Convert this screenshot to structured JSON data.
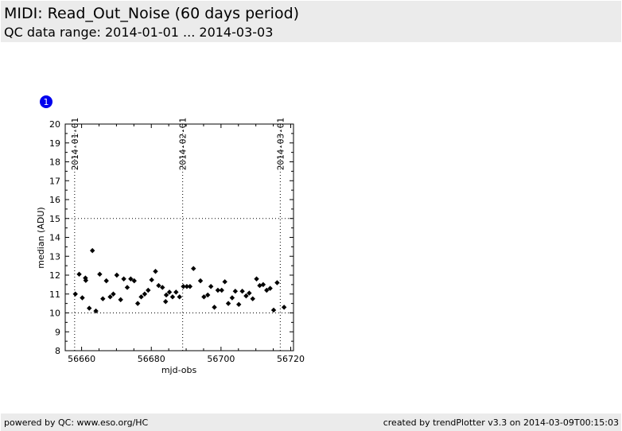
{
  "header": {
    "title": "MIDI: Read_Out_Noise (60 days period)",
    "subtitle": "QC data range: 2014-01-01 ... 2014-03-03"
  },
  "footer": {
    "left": "powered by QC: www.eso.org/HC",
    "right": "created by trendPlotter v3.3 on 2014-03-09T00:15:03"
  },
  "badge": {
    "label": "1",
    "color": "#0000ee"
  },
  "chart_data": {
    "type": "scatter",
    "xlabel": "mjd-obs",
    "ylabel": "median (ADU)",
    "xlim": [
      56655.3,
      56720.8
    ],
    "ylim": [
      8,
      20
    ],
    "xticks": [
      56660,
      56680,
      56700,
      56720
    ],
    "yticks": [
      8,
      9,
      10,
      11,
      12,
      13,
      14,
      15,
      16,
      17,
      18,
      19,
      20
    ],
    "hlines": [
      10,
      15
    ],
    "vlines": [
      {
        "x": 56658.0,
        "label": "2014-01-01"
      },
      {
        "x": 56689.0,
        "label": "2014-02-01"
      },
      {
        "x": 56717.0,
        "label": "2014-03-01"
      }
    ],
    "point_color": "#000000",
    "points": [
      [
        56658.2,
        11.0
      ],
      [
        56659.3,
        12.05
      ],
      [
        56660.2,
        10.8
      ],
      [
        56661.1,
        11.85
      ],
      [
        56661.2,
        11.72
      ],
      [
        56662.2,
        10.25
      ],
      [
        56663.1,
        13.3
      ],
      [
        56664.1,
        10.1
      ],
      [
        56665.2,
        12.05
      ],
      [
        56666.1,
        10.75
      ],
      [
        56667.1,
        11.7
      ],
      [
        56668.2,
        10.85
      ],
      [
        56669.1,
        11.0
      ],
      [
        56670.1,
        12.0
      ],
      [
        56671.2,
        10.7
      ],
      [
        56672.1,
        11.8
      ],
      [
        56673.1,
        11.35
      ],
      [
        56674.1,
        11.8
      ],
      [
        56675.1,
        11.7
      ],
      [
        56676.1,
        10.5
      ],
      [
        56677.1,
        10.85
      ],
      [
        56678.1,
        11.0
      ],
      [
        56679.1,
        11.2
      ],
      [
        56680.1,
        11.75
      ],
      [
        56681.2,
        12.2
      ],
      [
        56682.1,
        11.45
      ],
      [
        56683.2,
        11.35
      ],
      [
        56684.1,
        10.6
      ],
      [
        56684.3,
        10.95
      ],
      [
        56685.2,
        11.1
      ],
      [
        56686.1,
        10.85
      ],
      [
        56687.1,
        11.1
      ],
      [
        56688.1,
        10.85
      ],
      [
        56689.2,
        11.4
      ],
      [
        56690.2,
        11.4
      ],
      [
        56691.1,
        11.4
      ],
      [
        56692.1,
        12.35
      ],
      [
        56694.1,
        11.7
      ],
      [
        56695.1,
        10.85
      ],
      [
        56696.2,
        10.95
      ],
      [
        56697.1,
        11.4
      ],
      [
        56698.1,
        10.3
      ],
      [
        56699.1,
        11.2
      ],
      [
        56700.2,
        11.2
      ],
      [
        56701.1,
        11.65
      ],
      [
        56702.1,
        10.5
      ],
      [
        56703.2,
        10.8
      ],
      [
        56704.1,
        11.15
      ],
      [
        56705.1,
        10.45
      ],
      [
        56706.1,
        11.15
      ],
      [
        56707.2,
        10.9
      ],
      [
        56708.1,
        11.05
      ],
      [
        56709.1,
        10.75
      ],
      [
        56710.2,
        11.8
      ],
      [
        56711.1,
        11.45
      ],
      [
        56712.1,
        11.5
      ],
      [
        56713.1,
        11.2
      ],
      [
        56714.1,
        11.3
      ],
      [
        56715.1,
        10.15
      ],
      [
        56716.1,
        11.6
      ],
      [
        56718.1,
        10.3
      ]
    ]
  }
}
